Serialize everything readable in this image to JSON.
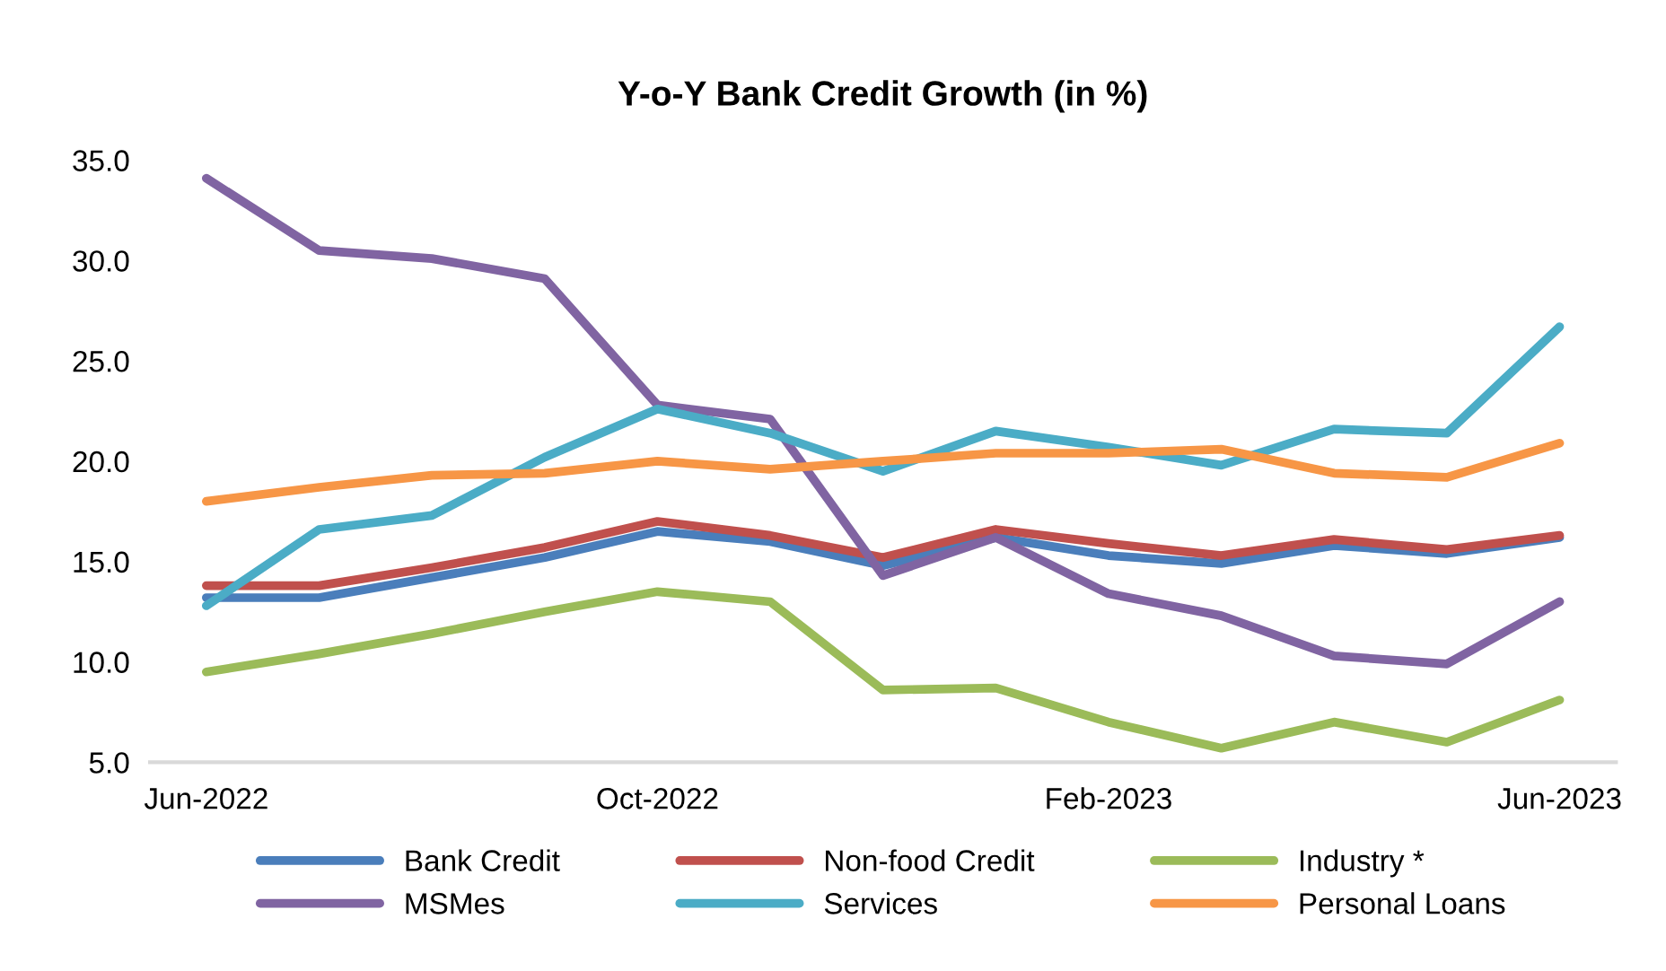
{
  "chart_data": {
    "type": "line",
    "title": "Y-o-Y Bank Credit Growth (in %)",
    "categories": [
      "Jun-2022",
      null,
      null,
      null,
      "Oct-2022",
      null,
      null,
      null,
      "Feb-2023",
      null,
      null,
      null,
      "Jun-2023"
    ],
    "series": [
      {
        "name": "Bank Credit",
        "color": "#4a7ebb",
        "values": [
          13.2,
          13.2,
          14.2,
          15.2,
          16.5,
          16.0,
          14.8,
          16.2,
          15.3,
          14.9,
          15.8,
          15.4,
          16.2
        ]
      },
      {
        "name": "Non-food Credit",
        "color": "#c0504d",
        "values": [
          13.8,
          13.8,
          14.7,
          15.7,
          17.0,
          16.3,
          15.2,
          16.6,
          15.9,
          15.3,
          16.1,
          15.6,
          16.3
        ]
      },
      {
        "name": "Industry *",
        "color": "#9bbb59",
        "values": [
          9.5,
          10.4,
          11.4,
          12.5,
          13.5,
          13.0,
          8.6,
          8.7,
          7.0,
          5.7,
          7.0,
          6.0,
          8.1
        ]
      },
      {
        "name": "MSMes",
        "color": "#8064a2",
        "values": [
          34.1,
          30.5,
          30.1,
          29.1,
          22.8,
          22.1,
          14.3,
          16.2,
          13.4,
          12.3,
          10.3,
          9.9,
          13.0
        ]
      },
      {
        "name": "Services",
        "color": "#4bacc6",
        "values": [
          12.8,
          16.6,
          17.3,
          20.2,
          22.6,
          21.4,
          19.5,
          21.5,
          20.7,
          19.8,
          21.6,
          21.4,
          26.7
        ]
      },
      {
        "name": "Personal Loans",
        "color": "#f79646",
        "values": [
          18.0,
          18.7,
          19.3,
          19.4,
          20.0,
          19.6,
          20.0,
          20.4,
          20.4,
          20.6,
          19.4,
          19.2,
          20.9
        ]
      }
    ],
    "ylim": [
      5,
      35
    ],
    "yticks": [
      {
        "value": 5,
        "label": "5.0"
      },
      {
        "value": 10,
        "label": "10.0"
      },
      {
        "value": 15,
        "label": "15.0"
      },
      {
        "value": 20,
        "label": "20.0"
      },
      {
        "value": 25,
        "label": "25.0"
      },
      {
        "value": 30,
        "label": "30.0"
      },
      {
        "value": 35,
        "label": "35.0"
      }
    ],
    "grid": false,
    "legend": "bottom",
    "marker": "none",
    "line_style": "solid"
  }
}
